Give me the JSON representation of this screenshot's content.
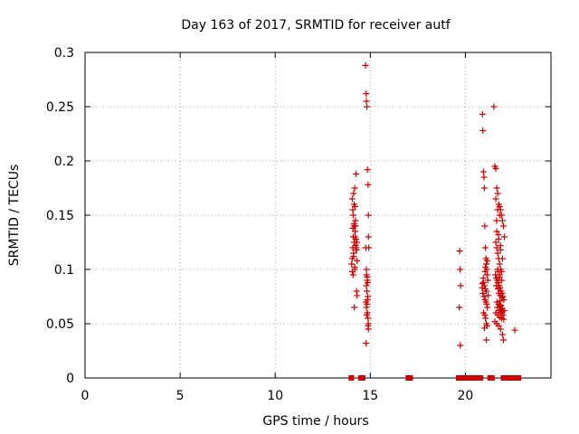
{
  "chart_data": {
    "type": "scatter",
    "title": "Day 163 of 2017, SRMTID for receiver autf",
    "xlabel": "GPS time / hours",
    "ylabel": "SRMTID / TECUs",
    "xlim": [
      0,
      24.5
    ],
    "ylim": [
      0,
      0.3
    ],
    "x_ticks": [
      0,
      5,
      10,
      15,
      20
    ],
    "x_tick_labels": [
      "0",
      "5",
      "10",
      "15",
      "20"
    ],
    "y_ticks": [
      0,
      0.05,
      0.1,
      0.15,
      0.2,
      0.25,
      0.3
    ],
    "y_tick_labels": [
      "0",
      "0.05",
      "0.1",
      "0.15",
      "0.2",
      "0.25",
      "0.3"
    ],
    "grid": true,
    "marker_color": "#cc0000",
    "series": [
      {
        "marker": "plus",
        "x": [
          14.02,
          14.05,
          14.08,
          14.1,
          14.12,
          14.15,
          14.18,
          14.2,
          14.22,
          14.25,
          14.28,
          14.3,
          14.1,
          14.15,
          14.2,
          14.05,
          14.12,
          14.18,
          14.25,
          14.22,
          14.08,
          14.3,
          14.15,
          14.2,
          14.1,
          14.18,
          14.28,
          14.05,
          14.12,
          14.22,
          14.26,
          14.3,
          14.16,
          14.09,
          14.24,
          14.14,
          14.75,
          14.78,
          14.8,
          14.82,
          14.85,
          14.88,
          14.9,
          14.76,
          14.8,
          14.84,
          14.86,
          14.79,
          14.82,
          14.87,
          14.77,
          14.83,
          14.8,
          14.85,
          14.81,
          14.88,
          14.9,
          14.9,
          14.92,
          14.85,
          14.9,
          14.88,
          14.78,
          14.84,
          14.8,
          19.7,
          19.72,
          19.75,
          19.68,
          19.73,
          20.9,
          20.92,
          20.95,
          20.98,
          21.0,
          21.02,
          21.05,
          21.08,
          21.1,
          21.12,
          21.15,
          21.18,
          20.95,
          21.0,
          21.05,
          21.1,
          20.92,
          20.98,
          21.03,
          21.08,
          21.12,
          21.15,
          20.96,
          21.02,
          21.06,
          21.1,
          21.14,
          21.0,
          21.04,
          20.94,
          20.9,
          20.88,
          21.1,
          21.2,
          21.15,
          21.05,
          21.5,
          21.55,
          21.6,
          21.65,
          21.7,
          21.75,
          21.8,
          21.85,
          21.9,
          21.95,
          22.0,
          22.05,
          21.6,
          21.65,
          21.7,
          21.75,
          21.8,
          21.85,
          21.9,
          21.58,
          21.62,
          21.68,
          21.72,
          21.78,
          21.82,
          21.88,
          21.92,
          21.98,
          22.02,
          21.66,
          21.74,
          21.84,
          21.94,
          22.04,
          21.6,
          21.7,
          21.8,
          21.9,
          21.55,
          21.65,
          21.75,
          21.85,
          21.95,
          22.0,
          21.62,
          21.72,
          21.82,
          21.92,
          21.68,
          21.78,
          21.88,
          21.7,
          21.8,
          21.9,
          21.6,
          21.7,
          21.8,
          21.65,
          21.75,
          21.85,
          21.95,
          21.7,
          21.8,
          21.72,
          21.76,
          21.82,
          21.86,
          21.9,
          21.94,
          21.98,
          22.02,
          21.64,
          21.74,
          21.84,
          22.6
        ],
        "y": [
          0.105,
          0.11,
          0.12,
          0.13,
          0.115,
          0.125,
          0.1,
          0.135,
          0.14,
          0.12,
          0.118,
          0.108,
          0.15,
          0.16,
          0.158,
          0.165,
          0.17,
          0.175,
          0.188,
          0.145,
          0.155,
          0.125,
          0.14,
          0.13,
          0.095,
          0.102,
          0.08,
          0.098,
          0.112,
          0.122,
          0.118,
          0.076,
          0.065,
          0.138,
          0.128,
          0.142,
          0.288,
          0.262,
          0.255,
          0.25,
          0.192,
          0.178,
          0.15,
          0.12,
          0.095,
          0.09,
          0.088,
          0.085,
          0.08,
          0.075,
          0.07,
          0.068,
          0.065,
          0.06,
          0.058,
          0.055,
          0.05,
          0.13,
          0.12,
          0.072,
          0.045,
          0.048,
          0.032,
          0.093,
          0.1,
          0.117,
          0.1,
          0.085,
          0.065,
          0.03,
          0.243,
          0.228,
          0.19,
          0.185,
          0.175,
          0.14,
          0.12,
          0.11,
          0.105,
          0.1,
          0.095,
          0.09,
          0.088,
          0.085,
          0.082,
          0.08,
          0.078,
          0.075,
          0.072,
          0.07,
          0.068,
          0.065,
          0.06,
          0.058,
          0.055,
          0.05,
          0.048,
          0.046,
          0.098,
          0.092,
          0.087,
          0.083,
          0.035,
          0.076,
          0.108,
          0.102,
          0.25,
          0.195,
          0.193,
          0.175,
          0.17,
          0.16,
          0.158,
          0.155,
          0.15,
          0.145,
          0.14,
          0.13,
          0.125,
          0.12,
          0.115,
          0.11,
          0.105,
          0.1,
          0.098,
          0.095,
          0.092,
          0.09,
          0.088,
          0.085,
          0.083,
          0.08,
          0.078,
          0.075,
          0.072,
          0.07,
          0.068,
          0.066,
          0.064,
          0.062,
          0.06,
          0.058,
          0.056,
          0.055,
          0.052,
          0.05,
          0.048,
          0.045,
          0.04,
          0.035,
          0.085,
          0.082,
          0.076,
          0.074,
          0.065,
          0.062,
          0.06,
          0.1,
          0.095,
          0.09,
          0.165,
          0.155,
          0.15,
          0.135,
          0.128,
          0.118,
          0.11,
          0.098,
          0.093,
          0.088,
          0.078,
          0.071,
          0.067,
          0.063,
          0.061,
          0.058,
          0.054,
          0.145,
          0.132,
          0.122,
          0.044
        ]
      },
      {
        "marker": "square",
        "x": [
          14.0,
          14.5,
          14.6,
          17.0,
          17.1,
          19.65,
          19.75,
          19.85,
          19.95,
          20.05,
          20.2,
          20.4,
          20.6,
          20.8,
          21.3,
          21.4,
          22.0,
          22.1,
          22.2,
          22.3,
          22.4,
          22.5,
          22.6,
          22.7,
          22.8
        ],
        "y": [
          0,
          0,
          0,
          0,
          0,
          0,
          0,
          0,
          0,
          0,
          0,
          0,
          0,
          0,
          0,
          0,
          0,
          0,
          0,
          0,
          0,
          0,
          0,
          0,
          0
        ]
      }
    ]
  }
}
